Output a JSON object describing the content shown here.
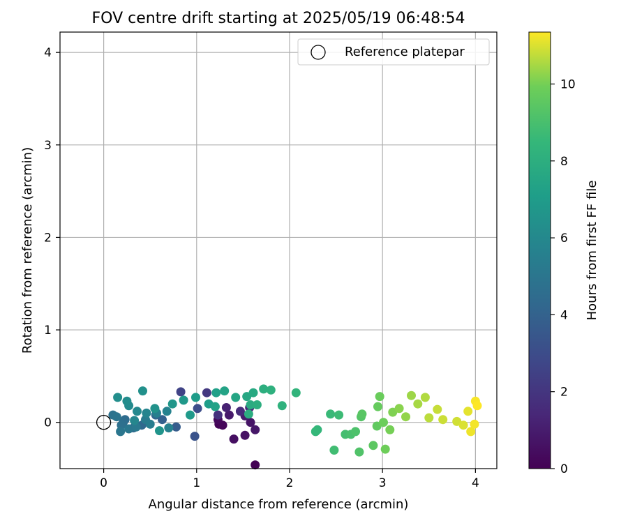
{
  "chart_data": {
    "type": "scatter",
    "title": "FOV centre drift starting at 2025/05/19 06:48:54",
    "xlabel": "Angular distance from reference (arcmin)",
    "ylabel": "Rotation from reference (arcmin)",
    "xlim": [
      -0.47,
      4.23
    ],
    "ylim": [
      -0.5,
      4.22
    ],
    "xticks": [
      "0",
      "1",
      "2",
      "3",
      "4"
    ],
    "yticks": [
      "0",
      "1",
      "2",
      "3",
      "4"
    ],
    "grid": true,
    "legend": {
      "placement": "top-right",
      "entries": [
        "Reference platepar"
      ]
    },
    "reference_point": {
      "x": 0,
      "y": 0,
      "name": "Reference platepar"
    },
    "colorbar": {
      "label": "Hours from first FF file",
      "min": 0,
      "max": 11.35,
      "ticks": [
        "0",
        "2",
        "4",
        "6",
        "8",
        "10"
      ],
      "colormap": "viridis"
    },
    "points": [
      [
        1.63,
        -0.46,
        0.0
      ],
      [
        1.24,
        -0.02,
        0.1
      ],
      [
        1.28,
        -0.03,
        0.2
      ],
      [
        1.23,
        0.03,
        0.3
      ],
      [
        1.4,
        -0.18,
        0.5
      ],
      [
        1.52,
        -0.14,
        0.6
      ],
      [
        1.58,
        0.0,
        0.7
      ],
      [
        1.63,
        -0.08,
        0.8
      ],
      [
        1.35,
        0.08,
        0.9
      ],
      [
        1.52,
        0.07,
        1.0
      ],
      [
        1.32,
        0.16,
        1.2
      ],
      [
        1.57,
        0.16,
        1.4
      ],
      [
        1.47,
        0.12,
        1.6
      ],
      [
        1.23,
        0.08,
        1.8
      ],
      [
        1.11,
        0.32,
        2.1
      ],
      [
        0.83,
        0.33,
        2.6
      ],
      [
        1.01,
        0.15,
        3.0
      ],
      [
        0.98,
        -0.15,
        3.3
      ],
      [
        0.78,
        -0.05,
        3.7
      ],
      [
        0.63,
        0.03,
        3.9
      ],
      [
        0.56,
        0.08,
        4.2
      ],
      [
        0.41,
        -0.03,
        4.3
      ],
      [
        0.32,
        -0.06,
        4.4
      ],
      [
        0.23,
        0.03,
        4.5
      ],
      [
        0.21,
        0.0,
        4.6
      ],
      [
        0.19,
        -0.03,
        4.7
      ],
      [
        0.1,
        0.08,
        4.8
      ],
      [
        0.14,
        0.06,
        4.9
      ],
      [
        0.18,
        -0.1,
        5.0
      ],
      [
        0.27,
        -0.07,
        5.1
      ],
      [
        0.35,
        -0.05,
        5.2
      ],
      [
        0.45,
        0.03,
        5.3
      ],
      [
        0.5,
        -0.02,
        5.4
      ],
      [
        0.57,
        0.1,
        5.5
      ],
      [
        0.7,
        -0.06,
        5.6
      ],
      [
        0.68,
        0.12,
        5.7
      ],
      [
        0.46,
        0.1,
        5.8
      ],
      [
        0.33,
        0.02,
        5.9
      ],
      [
        0.36,
        0.12,
        6.0
      ],
      [
        0.27,
        0.18,
        6.1
      ],
      [
        0.25,
        0.23,
        6.2
      ],
      [
        0.15,
        0.27,
        6.3
      ],
      [
        0.42,
        0.34,
        6.4
      ],
      [
        0.55,
        0.15,
        6.5
      ],
      [
        0.6,
        -0.09,
        6.6
      ],
      [
        0.74,
        0.2,
        6.7
      ],
      [
        0.86,
        0.24,
        6.8
      ],
      [
        0.93,
        0.08,
        6.9
      ],
      [
        0.99,
        0.27,
        7.0
      ],
      [
        1.13,
        0.2,
        7.1
      ],
      [
        1.21,
        0.32,
        7.2
      ],
      [
        1.2,
        0.17,
        7.3
      ],
      [
        1.3,
        0.34,
        7.4
      ],
      [
        1.42,
        0.27,
        7.5
      ],
      [
        1.54,
        0.28,
        7.6
      ],
      [
        1.61,
        0.32,
        7.7
      ],
      [
        1.58,
        0.19,
        7.8
      ],
      [
        1.56,
        0.09,
        7.9
      ],
      [
        1.65,
        0.19,
        7.95
      ],
      [
        1.72,
        0.36,
        8.0
      ],
      [
        1.8,
        0.35,
        8.1
      ],
      [
        1.92,
        0.18,
        8.2
      ],
      [
        2.07,
        0.32,
        8.3
      ],
      [
        2.3,
        -0.08,
        8.4
      ],
      [
        2.28,
        -0.1,
        8.5
      ],
      [
        2.44,
        0.09,
        8.6
      ],
      [
        2.53,
        0.08,
        8.7
      ],
      [
        2.48,
        -0.3,
        8.8
      ],
      [
        2.6,
        -0.13,
        8.9
      ],
      [
        2.66,
        -0.13,
        9.0
      ],
      [
        2.71,
        -0.1,
        9.1
      ],
      [
        2.75,
        -0.32,
        9.2
      ],
      [
        2.77,
        0.06,
        9.3
      ],
      [
        2.78,
        0.09,
        9.4
      ],
      [
        2.9,
        -0.25,
        9.5
      ],
      [
        2.94,
        -0.04,
        9.6
      ],
      [
        2.95,
        0.17,
        9.7
      ],
      [
        2.97,
        0.28,
        9.8
      ],
      [
        3.01,
        0.0,
        9.85
      ],
      [
        3.03,
        -0.29,
        9.9
      ],
      [
        3.08,
        -0.08,
        10.0
      ],
      [
        3.11,
        0.11,
        10.1
      ],
      [
        3.18,
        0.15,
        10.2
      ],
      [
        3.25,
        0.06,
        10.3
      ],
      [
        3.31,
        0.29,
        10.4
      ],
      [
        3.38,
        0.2,
        10.5
      ],
      [
        3.46,
        0.27,
        10.6
      ],
      [
        3.5,
        0.05,
        10.7
      ],
      [
        3.59,
        0.14,
        10.8
      ],
      [
        3.65,
        0.03,
        10.85
      ],
      [
        3.8,
        0.01,
        10.9
      ],
      [
        3.87,
        -0.03,
        11.0
      ],
      [
        3.92,
        0.12,
        11.1
      ],
      [
        3.95,
        -0.1,
        11.2
      ],
      [
        3.99,
        -0.02,
        11.25
      ],
      [
        4.0,
        0.23,
        11.3
      ],
      [
        4.02,
        0.18,
        11.35
      ]
    ]
  }
}
